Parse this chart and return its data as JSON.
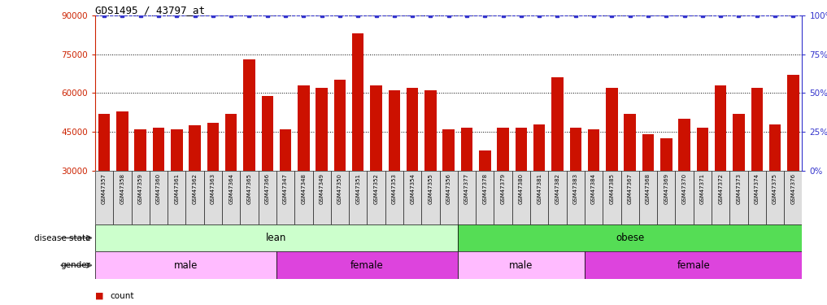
{
  "title": "GDS1495 / 43797_at",
  "ylim_left": [
    30000,
    90000
  ],
  "ylim_right": [
    0,
    100
  ],
  "yticks_left": [
    30000,
    45000,
    60000,
    75000,
    90000
  ],
  "yticks_right": [
    0,
    25,
    50,
    75,
    100
  ],
  "bar_color": "#cc1100",
  "dot_color": "#3333cc",
  "samples": [
    "GSM47357",
    "GSM47358",
    "GSM47359",
    "GSM47360",
    "GSM47361",
    "GSM47362",
    "GSM47363",
    "GSM47364",
    "GSM47365",
    "GSM47366",
    "GSM47347",
    "GSM47348",
    "GSM47349",
    "GSM47350",
    "GSM47351",
    "GSM47352",
    "GSM47353",
    "GSM47354",
    "GSM47355",
    "GSM47356",
    "GSM47377",
    "GSM47378",
    "GSM47379",
    "GSM47380",
    "GSM47381",
    "GSM47382",
    "GSM47383",
    "GSM47384",
    "GSM47385",
    "GSM47367",
    "GSM47368",
    "GSM47369",
    "GSM47370",
    "GSM47371",
    "GSM47372",
    "GSM47373",
    "GSM47374",
    "GSM47375",
    "GSM47376"
  ],
  "values": [
    52000,
    53000,
    46000,
    46500,
    46000,
    47500,
    48500,
    52000,
    73000,
    59000,
    46000,
    63000,
    62000,
    65000,
    83000,
    63000,
    61000,
    62000,
    61000,
    46000,
    46500,
    38000,
    46500,
    46500,
    48000,
    66000,
    46500,
    46000,
    62000,
    52000,
    44000,
    42500,
    50000,
    46500,
    63000,
    52000,
    62000,
    48000,
    67000
  ],
  "disease_state_groups": [
    {
      "label": "lean",
      "start": 0,
      "end": 20,
      "color": "#ccffcc"
    },
    {
      "label": "obese",
      "start": 20,
      "end": 39,
      "color": "#55dd55"
    }
  ],
  "gender_groups": [
    {
      "label": "male",
      "start": 0,
      "end": 10,
      "color": "#ffbbff"
    },
    {
      "label": "female",
      "start": 10,
      "end": 20,
      "color": "#dd44dd"
    },
    {
      "label": "male",
      "start": 20,
      "end": 27,
      "color": "#ffbbff"
    },
    {
      "label": "female",
      "start": 27,
      "end": 39,
      "color": "#dd44dd"
    }
  ],
  "left_label_color": "#cc2200",
  "right_label_color": "#3333cc",
  "xtick_bg": "#dddddd",
  "fig_bg": "#f2f2f2"
}
